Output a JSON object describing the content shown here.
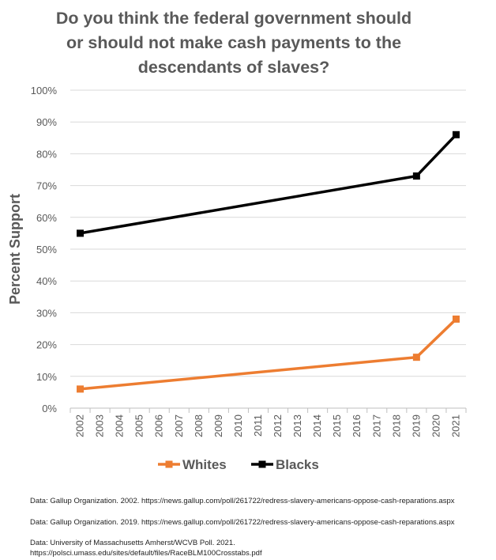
{
  "chart_data": {
    "type": "line",
    "title_lines": [
      "Do you think the federal government should",
      "or should not make cash payments to the",
      "descendants of slaves?"
    ],
    "xlabel": "",
    "ylabel": "Percent Support",
    "ylim": [
      0,
      100
    ],
    "y_ticks": [
      "0%",
      "10%",
      "20%",
      "30%",
      "40%",
      "50%",
      "60%",
      "70%",
      "80%",
      "90%",
      "100%"
    ],
    "x_categories": [
      "2002",
      "2003",
      "2004",
      "2005",
      "2006",
      "2007",
      "2008",
      "2009",
      "2010",
      "2011",
      "2012",
      "2013",
      "2014",
      "2015",
      "2016",
      "2017",
      "2018",
      "2019",
      "2020",
      "2021"
    ],
    "grid": true,
    "legend_position": "bottom",
    "series": [
      {
        "name": "Whites",
        "color": "#ed7d31",
        "points": [
          {
            "x": "2002",
            "y": 6
          },
          {
            "x": "2019",
            "y": 16
          },
          {
            "x": "2021",
            "y": 28
          }
        ]
      },
      {
        "name": "Blacks",
        "color": "#000000",
        "points": [
          {
            "x": "2002",
            "y": 55
          },
          {
            "x": "2019",
            "y": 73
          },
          {
            "x": "2021",
            "y": 86
          }
        ]
      }
    ]
  },
  "sources": [
    "Data: Gallup Organization. 2002. https://news.gallup.com/poll/261722/redress-slavery-americans-oppose-cash-reparations.aspx",
    "Data: Gallup Organization. 2019. https://news.gallup.com/poll/261722/redress-slavery-americans-oppose-cash-reparations.aspx",
    "Data: University of Massachusetts Amherst/WCVB Poll. 2021.",
    "https://polsci.umass.edu/sites/default/files/RaceBLM100Crosstabs.pdf"
  ]
}
